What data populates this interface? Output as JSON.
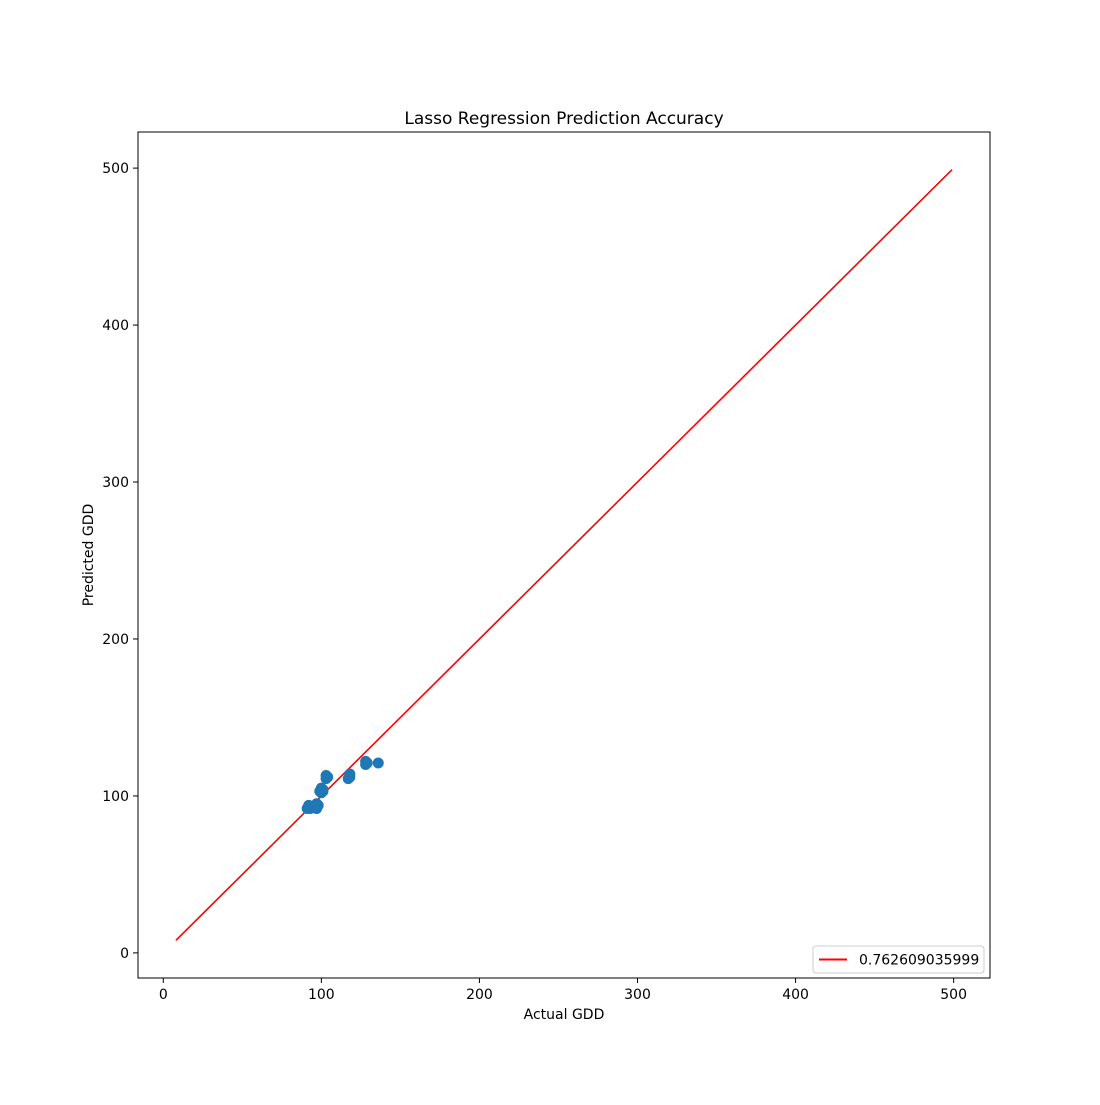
{
  "chart_data": {
    "type": "scatter",
    "title": "Lasso Regression Prediction Accuracy",
    "xlabel": "Actual GDD",
    "ylabel": "Predicted GDD",
    "xlim": [
      -16,
      523
    ],
    "ylim": [
      -16,
      523
    ],
    "xticks": [
      0,
      100,
      200,
      300,
      400,
      500
    ],
    "yticks": [
      0,
      100,
      200,
      300,
      400,
      500
    ],
    "grid": false,
    "legend_position": "lower right",
    "colors": {
      "points": "#1f77b4",
      "line": "#ff0000"
    },
    "line": {
      "name": "0.762609035999",
      "x": [
        8,
        499
      ],
      "y": [
        8,
        499
      ]
    },
    "points": [
      {
        "x": 91,
        "y": 92
      },
      {
        "x": 92,
        "y": 94
      },
      {
        "x": 92,
        "y": 93
      },
      {
        "x": 93,
        "y": 92
      },
      {
        "x": 96,
        "y": 93
      },
      {
        "x": 97,
        "y": 95
      },
      {
        "x": 97,
        "y": 92
      },
      {
        "x": 98,
        "y": 94
      },
      {
        "x": 99,
        "y": 103
      },
      {
        "x": 100,
        "y": 105
      },
      {
        "x": 100,
        "y": 102
      },
      {
        "x": 101,
        "y": 104
      },
      {
        "x": 101,
        "y": 103
      },
      {
        "x": 103,
        "y": 111
      },
      {
        "x": 103,
        "y": 113
      },
      {
        "x": 104,
        "y": 112
      },
      {
        "x": 117,
        "y": 111
      },
      {
        "x": 118,
        "y": 114
      },
      {
        "x": 118,
        "y": 112
      },
      {
        "x": 128,
        "y": 120
      },
      {
        "x": 128,
        "y": 122
      },
      {
        "x": 129,
        "y": 121
      },
      {
        "x": 136,
        "y": 121
      }
    ]
  }
}
